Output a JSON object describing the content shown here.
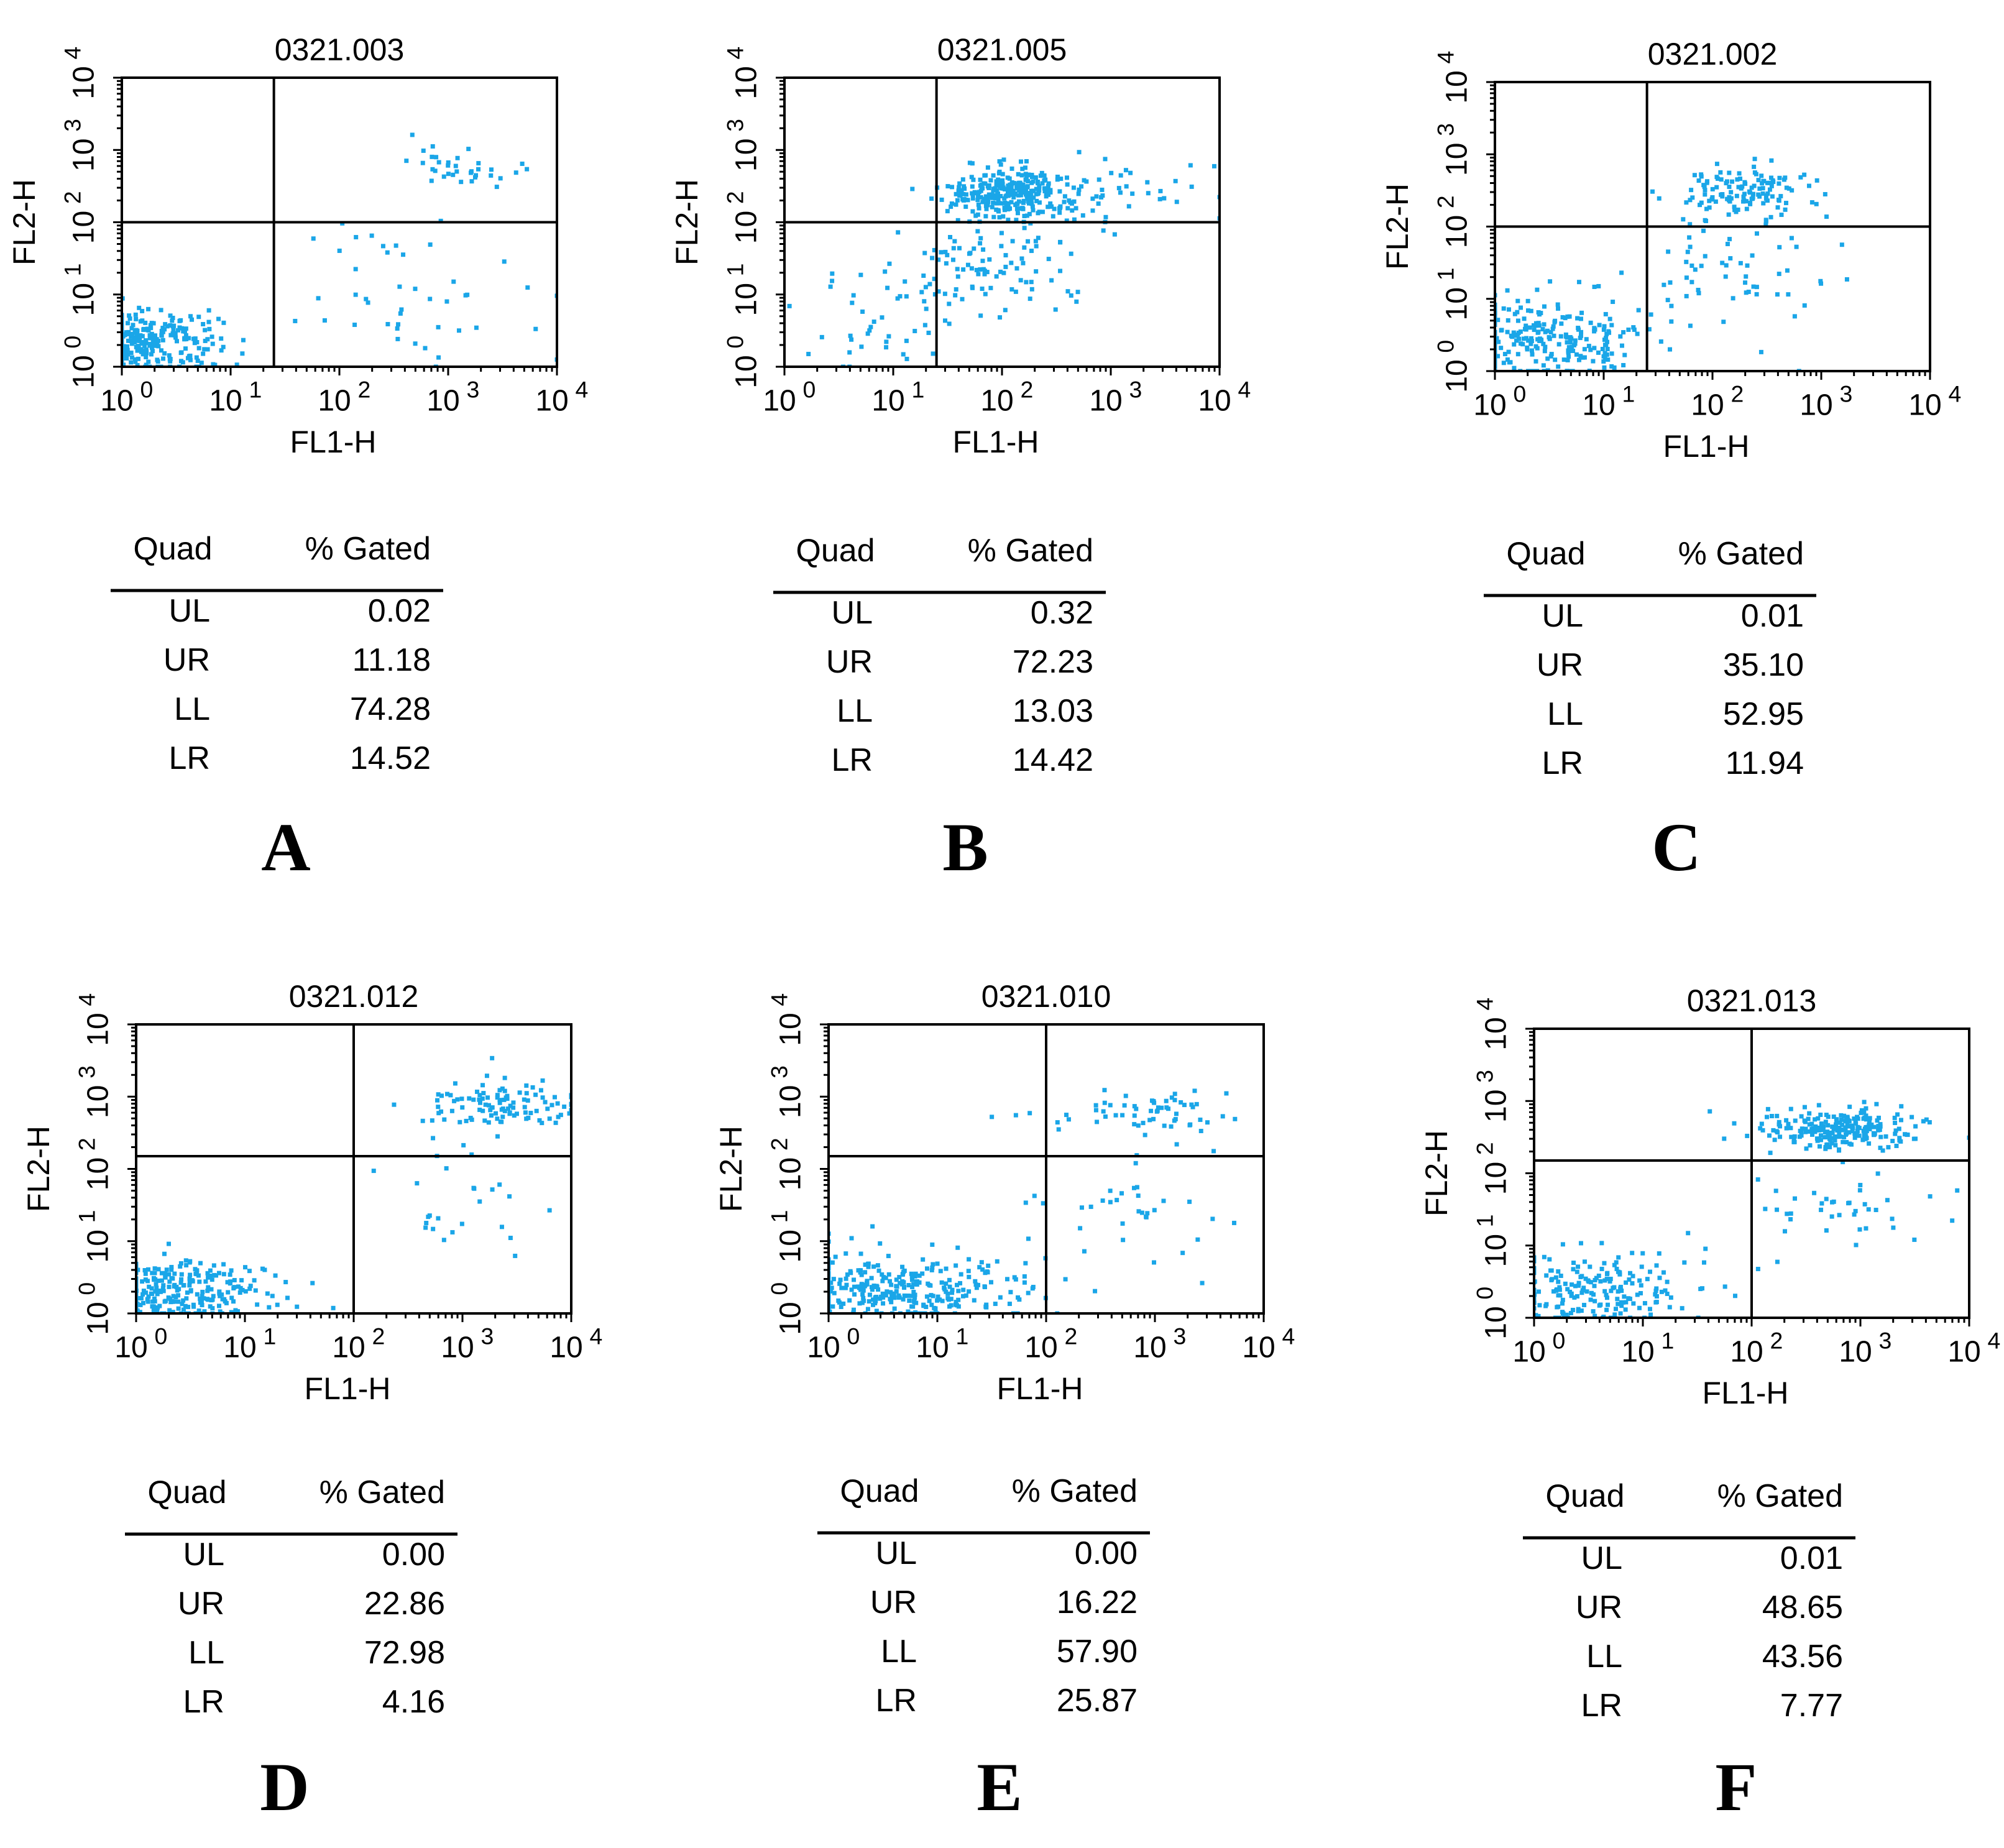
{
  "figure": {
    "dot_color": "#1aa6e8",
    "ink_color": "#000000",
    "quad_header": "Quad",
    "gated_header": "% Gated"
  },
  "chart_data": [
    {
      "type": "scatter",
      "panel": "A",
      "title": "0321.003",
      "xlabel": "FL1-H",
      "ylabel": "FL2-H",
      "x_scale": "log",
      "y_scale": "log",
      "xlim": [
        1,
        10000
      ],
      "ylim": [
        1,
        10000
      ],
      "x_ticks": [
        "10^0",
        "10^1",
        "10^2",
        "10^3",
        "10^4"
      ],
      "y_ticks": [
        "10^0",
        "10^1",
        "10^2",
        "10^3",
        "10^4"
      ],
      "quadrant_gate": {
        "x": 25,
        "y": 100
      },
      "quad_stats": [
        {
          "quad": "UL",
          "gated": "0.02"
        },
        {
          "quad": "UR",
          "gated": "11.18"
        },
        {
          "quad": "LL",
          "gated": "74.28"
        },
        {
          "quad": "LR",
          "gated": "14.52"
        }
      ],
      "clusters": [
        {
          "cx": 0.2,
          "cy": 0.35,
          "sx": 0.35,
          "sy": 0.2,
          "n": 280
        },
        {
          "cx": 3.15,
          "cy": 2.8,
          "sx": 0.25,
          "sy": 0.15,
          "n": 35
        },
        {
          "cx": 2.7,
          "cy": 1.0,
          "sx": 0.55,
          "sy": 0.5,
          "n": 45
        }
      ]
    },
    {
      "type": "scatter",
      "panel": "B",
      "title": "0321.005",
      "xlabel": "FL1-H",
      "ylabel": "FL2-H",
      "x_scale": "log",
      "y_scale": "log",
      "xlim": [
        1,
        10000
      ],
      "ylim": [
        1,
        10000
      ],
      "x_ticks": [
        "10^0",
        "10^1",
        "10^2",
        "10^3",
        "10^4"
      ],
      "y_ticks": [
        "10^0",
        "10^1",
        "10^2",
        "10^3",
        "10^4"
      ],
      "quadrant_gate": {
        "x": 25,
        "y": 100
      },
      "quad_stats": [
        {
          "quad": "UL",
          "gated": "0.32"
        },
        {
          "quad": "UR",
          "gated": "72.23"
        },
        {
          "quad": "LL",
          "gated": "13.03"
        },
        {
          "quad": "LR",
          "gated": "14.42"
        }
      ],
      "clusters": [
        {
          "cx": 2.1,
          "cy": 2.4,
          "sx": 0.3,
          "sy": 0.18,
          "n": 300
        },
        {
          "cx": 3.2,
          "cy": 2.5,
          "sx": 0.45,
          "sy": 0.25,
          "n": 40
        },
        {
          "cx": 1.9,
          "cy": 1.4,
          "sx": 0.35,
          "sy": 0.4,
          "n": 90
        },
        {
          "cx": 0.9,
          "cy": 0.7,
          "sx": 0.45,
          "sy": 0.45,
          "n": 50
        }
      ]
    },
    {
      "type": "scatter",
      "panel": "C",
      "title": "0321.002",
      "xlabel": "FL1-H",
      "ylabel": "FL2-H",
      "x_scale": "log",
      "y_scale": "log",
      "xlim": [
        1,
        10000
      ],
      "ylim": [
        1,
        10000
      ],
      "x_ticks": [
        "10^0",
        "10^1",
        "10^2",
        "10^3",
        "10^4"
      ],
      "y_ticks": [
        "10^0",
        "10^1",
        "10^2",
        "10^3",
        "10^4"
      ],
      "quadrant_gate": {
        "x": 25,
        "y": 100
      },
      "quad_stats": [
        {
          "quad": "UL",
          "gated": "0.01"
        },
        {
          "quad": "UR",
          "gated": "35.10"
        },
        {
          "quad": "LL",
          "gated": "52.95"
        },
        {
          "quad": "LR",
          "gated": "11.94"
        }
      ],
      "clusters": [
        {
          "cx": 0.45,
          "cy": 0.45,
          "sx": 0.45,
          "sy": 0.3,
          "n": 250
        },
        {
          "cx": 2.3,
          "cy": 2.5,
          "sx": 0.28,
          "sy": 0.15,
          "n": 130
        },
        {
          "cx": 2.1,
          "cy": 1.4,
          "sx": 0.4,
          "sy": 0.45,
          "n": 60
        }
      ]
    },
    {
      "type": "scatter",
      "panel": "D",
      "title": "0321.012",
      "xlabel": "FL1-H",
      "ylabel": "FL2-H",
      "x_scale": "log",
      "y_scale": "log",
      "xlim": [
        1,
        10000
      ],
      "ylim": [
        1,
        10000
      ],
      "x_ticks": [
        "10^0",
        "10^1",
        "10^2",
        "10^3",
        "10^4"
      ],
      "y_ticks": [
        "10^0",
        "10^1",
        "10^2",
        "10^3",
        "10^4"
      ],
      "quadrant_gate": {
        "x": 100,
        "y": 150
      },
      "quad_stats": [
        {
          "quad": "UL",
          "gated": "0.00"
        },
        {
          "quad": "UR",
          "gated": "22.86"
        },
        {
          "quad": "LL",
          "gated": "72.98"
        },
        {
          "quad": "LR",
          "gated": "4.16"
        }
      ],
      "clusters": [
        {
          "cx": 0.3,
          "cy": 0.3,
          "sx": 0.45,
          "sy": 0.22,
          "n": 280
        },
        {
          "cx": 3.4,
          "cy": 2.85,
          "sx": 0.35,
          "sy": 0.18,
          "n": 110
        },
        {
          "cx": 3.0,
          "cy": 1.5,
          "sx": 0.4,
          "sy": 0.4,
          "n": 25
        }
      ]
    },
    {
      "type": "scatter",
      "panel": "E",
      "title": "0321.010",
      "xlabel": "FL1-H",
      "ylabel": "FL2-H",
      "x_scale": "log",
      "y_scale": "log",
      "xlim": [
        1,
        10000
      ],
      "ylim": [
        1,
        10000
      ],
      "x_ticks": [
        "10^0",
        "10^1",
        "10^2",
        "10^3",
        "10^4"
      ],
      "y_ticks": [
        "10^0",
        "10^1",
        "10^2",
        "10^3",
        "10^4"
      ],
      "quadrant_gate": {
        "x": 100,
        "y": 150
      },
      "quad_stats": [
        {
          "quad": "UL",
          "gated": "0.00"
        },
        {
          "quad": "UR",
          "gated": "16.22"
        },
        {
          "quad": "LL",
          "gated": "57.90"
        },
        {
          "quad": "LR",
          "gated": "25.87"
        }
      ],
      "clusters": [
        {
          "cx": 0.6,
          "cy": 0.35,
          "sx": 0.6,
          "sy": 0.25,
          "n": 320
        },
        {
          "cx": 3.0,
          "cy": 2.8,
          "sx": 0.45,
          "sy": 0.15,
          "n": 60
        },
        {
          "cx": 2.7,
          "cy": 1.4,
          "sx": 0.55,
          "sy": 0.5,
          "n": 40
        }
      ]
    },
    {
      "type": "scatter",
      "panel": "F",
      "title": "0321.013",
      "xlabel": "FL1-H",
      "ylabel": "FL2-H",
      "x_scale": "log",
      "y_scale": "log",
      "xlim": [
        1,
        10000
      ],
      "ylim": [
        1,
        10000
      ],
      "x_ticks": [
        "10^0",
        "10^1",
        "10^2",
        "10^3",
        "10^4"
      ],
      "y_ticks": [
        "10^0",
        "10^1",
        "10^2",
        "10^3",
        "10^4"
      ],
      "quadrant_gate": {
        "x": 100,
        "y": 150
      },
      "quad_stats": [
        {
          "quad": "UL",
          "gated": "0.01"
        },
        {
          "quad": "UR",
          "gated": "48.65"
        },
        {
          "quad": "LL",
          "gated": "43.56"
        },
        {
          "quad": "LR",
          "gated": "7.77"
        }
      ],
      "clusters": [
        {
          "cx": 2.85,
          "cy": 2.6,
          "sx": 0.35,
          "sy": 0.15,
          "n": 240
        },
        {
          "cx": 2.9,
          "cy": 1.5,
          "sx": 0.4,
          "sy": 0.35,
          "n": 40
        },
        {
          "cx": 0.6,
          "cy": 0.4,
          "sx": 0.55,
          "sy": 0.25,
          "n": 200
        }
      ]
    }
  ]
}
